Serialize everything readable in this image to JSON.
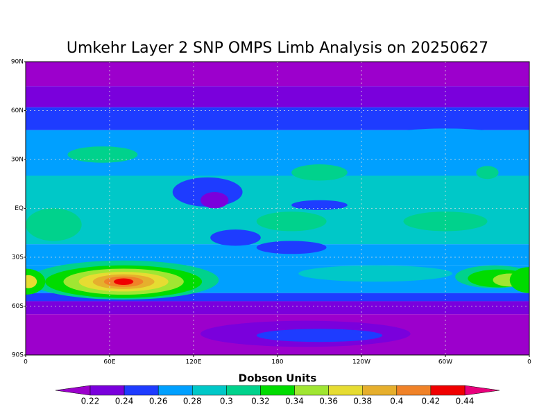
{
  "title": "Umkehr Layer 2 SNP OMPS Limb Analysis on 20250627",
  "map": {
    "lat_ticks": [
      {
        "value": 90,
        "label": "90N"
      },
      {
        "value": 60,
        "label": "60N"
      },
      {
        "value": 30,
        "label": "30N"
      },
      {
        "value": 0,
        "label": "EQ"
      },
      {
        "value": -30,
        "label": "30S"
      },
      {
        "value": -60,
        "label": "60S"
      },
      {
        "value": -90,
        "label": "90S"
      }
    ],
    "lon_ticks": [
      0,
      {
        "value": 60,
        "label": "60E"
      },
      {
        "value": 120,
        "label": "120E"
      },
      180,
      {
        "value": 240,
        "label": "120W"
      },
      {
        "value": 300,
        "label": "60W"
      },
      {
        "value": 360,
        "label": "0"
      }
    ]
  },
  "colorbar": {
    "title": "Dobson Units",
    "levels": [
      0.22,
      0.24,
      0.26,
      0.28,
      0.3,
      0.32,
      0.34,
      0.36,
      0.38,
      0.4,
      0.42,
      0.44
    ],
    "colors": [
      "#9c00cc",
      "#7a00dc",
      "#1e3cff",
      "#00a0ff",
      "#00c8c8",
      "#00d28c",
      "#00dc00",
      "#a0e632",
      "#e6dc32",
      "#e6af2d",
      "#f08228",
      "#f00000",
      "#e8007c"
    ]
  }
}
